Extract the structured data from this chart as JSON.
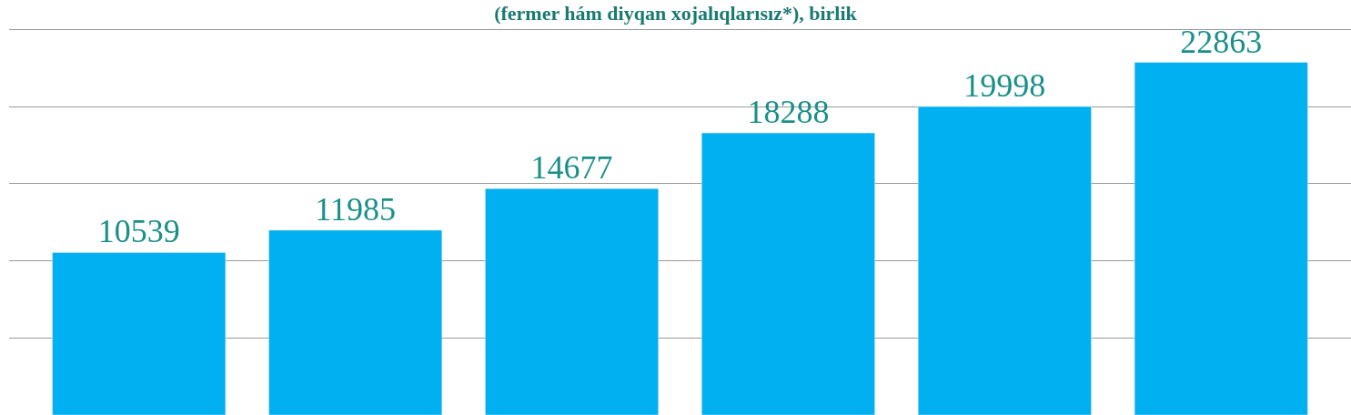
{
  "chart_data": {
    "type": "bar",
    "title": "(fermer hám diyqan xojalıqlarısız*), birlik",
    "categories": [
      null,
      null,
      null,
      null,
      null,
      null
    ],
    "values": [
      10539,
      11985,
      14677,
      18288,
      19998,
      22863
    ],
    "color": "#00b0f0",
    "data_labels": true,
    "yticks": [
      {
        "value": 5000,
        "label": null
      },
      {
        "value": 10000,
        "label": null
      },
      {
        "value": 15000,
        "label": null
      },
      {
        "value": 20000,
        "label": null
      },
      {
        "value": 25000,
        "label": null
      }
    ],
    "grid": "y"
  }
}
